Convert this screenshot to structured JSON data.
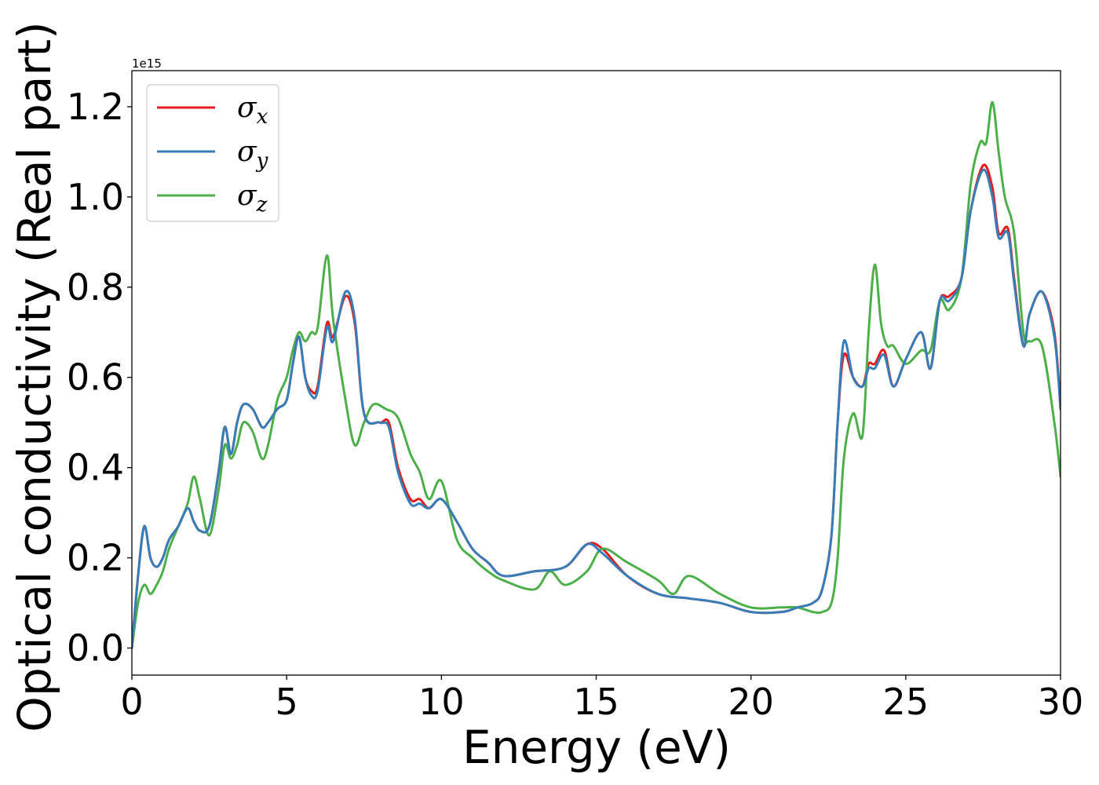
{
  "chart_data": {
    "type": "line",
    "xlabel": "Energy (eV)",
    "ylabel": "Optical conductivity (Real part)",
    "y_offset_text": "1e15",
    "xlim": [
      0,
      30
    ],
    "ylim": [
      -0.06,
      1.28
    ],
    "x_ticks": [
      0,
      5,
      10,
      15,
      20,
      25,
      30
    ],
    "x_tick_labels": [
      "0",
      "5",
      "10",
      "15",
      "20",
      "25",
      "30"
    ],
    "y_ticks": [
      0.0,
      0.2,
      0.4,
      0.6,
      0.8,
      1.0,
      1.2
    ],
    "y_tick_labels": [
      "0.0",
      "0.2",
      "0.4",
      "0.6",
      "0.8",
      "1.0",
      "1.2"
    ],
    "grid": false,
    "legend_position": "top-left",
    "series": [
      {
        "name": "σx",
        "label_main": "σ",
        "label_sub": "x",
        "color": "#e41a1c",
        "x": [
          0,
          0.2,
          0.4,
          0.6,
          0.8,
          1.0,
          1.2,
          1.5,
          1.8,
          2.0,
          2.2,
          2.5,
          2.8,
          3.0,
          3.2,
          3.4,
          3.6,
          3.9,
          4.2,
          4.4,
          4.7,
          5.0,
          5.2,
          5.4,
          5.6,
          5.8,
          6.0,
          6.3,
          6.5,
          6.9,
          7.2,
          7.5,
          8.0,
          8.3,
          8.6,
          9.0,
          9.3,
          9.6,
          10.0,
          10.5,
          11.0,
          11.5,
          12.0,
          13.0,
          14.0,
          14.7,
          15.2,
          16.0,
          17.0,
          18.0,
          19.0,
          20.0,
          21.0,
          21.5,
          22.0,
          22.3,
          22.6,
          22.8,
          23.0,
          23.3,
          23.6,
          23.8,
          24.0,
          24.3,
          24.6,
          25.0,
          25.5,
          25.8,
          26.1,
          26.4,
          26.8,
          27.1,
          27.5,
          27.8,
          28.0,
          28.3,
          28.5,
          28.8,
          29.0,
          29.4,
          29.8,
          30.0
        ],
        "y": [
          0,
          0.16,
          0.27,
          0.2,
          0.18,
          0.2,
          0.24,
          0.27,
          0.31,
          0.28,
          0.26,
          0.27,
          0.39,
          0.49,
          0.43,
          0.5,
          0.54,
          0.53,
          0.49,
          0.5,
          0.53,
          0.55,
          0.63,
          0.69,
          0.6,
          0.57,
          0.58,
          0.72,
          0.69,
          0.78,
          0.72,
          0.52,
          0.5,
          0.5,
          0.4,
          0.33,
          0.33,
          0.31,
          0.33,
          0.28,
          0.22,
          0.19,
          0.16,
          0.17,
          0.18,
          0.23,
          0.22,
          0.16,
          0.12,
          0.11,
          0.1,
          0.08,
          0.08,
          0.09,
          0.1,
          0.13,
          0.25,
          0.5,
          0.65,
          0.6,
          0.58,
          0.63,
          0.63,
          0.66,
          0.58,
          0.64,
          0.7,
          0.62,
          0.77,
          0.78,
          0.82,
          0.97,
          1.07,
          1.02,
          0.92,
          0.93,
          0.82,
          0.67,
          0.74,
          0.79,
          0.7,
          0.53
        ]
      },
      {
        "name": "σy",
        "label_main": "σ",
        "label_sub": "y",
        "color": "#377eb8",
        "x": [
          0,
          0.2,
          0.4,
          0.6,
          0.8,
          1.0,
          1.2,
          1.5,
          1.8,
          2.0,
          2.2,
          2.5,
          2.8,
          3.0,
          3.2,
          3.4,
          3.6,
          3.9,
          4.2,
          4.4,
          4.7,
          5.0,
          5.2,
          5.4,
          5.6,
          5.8,
          6.0,
          6.3,
          6.5,
          6.9,
          7.2,
          7.5,
          8.0,
          8.3,
          8.6,
          9.0,
          9.3,
          9.6,
          10.0,
          10.5,
          11.0,
          11.5,
          12.0,
          13.0,
          14.0,
          14.7,
          15.2,
          16.0,
          17.0,
          18.0,
          19.0,
          20.0,
          21.0,
          21.5,
          22.0,
          22.3,
          22.6,
          22.8,
          23.0,
          23.3,
          23.6,
          23.8,
          24.0,
          24.3,
          24.6,
          25.0,
          25.5,
          25.8,
          26.1,
          26.4,
          26.8,
          27.1,
          27.5,
          27.8,
          28.0,
          28.3,
          28.5,
          28.8,
          29.0,
          29.4,
          29.8,
          30.0
        ],
        "y": [
          0,
          0.16,
          0.27,
          0.2,
          0.18,
          0.2,
          0.24,
          0.27,
          0.31,
          0.28,
          0.26,
          0.27,
          0.39,
          0.49,
          0.43,
          0.5,
          0.54,
          0.53,
          0.49,
          0.5,
          0.53,
          0.55,
          0.63,
          0.69,
          0.6,
          0.56,
          0.57,
          0.71,
          0.68,
          0.79,
          0.73,
          0.52,
          0.5,
          0.49,
          0.39,
          0.32,
          0.32,
          0.31,
          0.33,
          0.28,
          0.22,
          0.19,
          0.16,
          0.17,
          0.18,
          0.23,
          0.21,
          0.16,
          0.12,
          0.11,
          0.1,
          0.08,
          0.08,
          0.09,
          0.1,
          0.13,
          0.25,
          0.5,
          0.68,
          0.6,
          0.58,
          0.62,
          0.62,
          0.65,
          0.58,
          0.64,
          0.7,
          0.62,
          0.77,
          0.77,
          0.82,
          0.97,
          1.06,
          1.0,
          0.91,
          0.92,
          0.81,
          0.67,
          0.74,
          0.79,
          0.69,
          0.53
        ]
      },
      {
        "name": "σz",
        "label_main": "σ",
        "label_sub": "z",
        "color": "#4daf4a",
        "x": [
          0,
          0.2,
          0.4,
          0.6,
          0.8,
          1.0,
          1.2,
          1.5,
          1.8,
          2.0,
          2.2,
          2.5,
          2.8,
          3.0,
          3.2,
          3.4,
          3.6,
          3.9,
          4.2,
          4.4,
          4.7,
          5.0,
          5.2,
          5.4,
          5.6,
          5.8,
          6.0,
          6.3,
          6.5,
          6.9,
          7.2,
          7.5,
          7.8,
          8.2,
          8.6,
          9.0,
          9.3,
          9.6,
          10.0,
          10.5,
          11.0,
          11.5,
          12.0,
          13.0,
          13.5,
          14.0,
          14.7,
          15.2,
          16.0,
          17.0,
          17.5,
          18.0,
          19.0,
          20.0,
          21.0,
          21.5,
          22.0,
          22.3,
          22.6,
          22.8,
          23.0,
          23.3,
          23.6,
          23.8,
          24.0,
          24.2,
          24.4,
          24.6,
          25.0,
          25.5,
          25.8,
          26.1,
          26.4,
          26.8,
          27.1,
          27.4,
          27.6,
          27.8,
          28.0,
          28.2,
          28.5,
          28.8,
          29.0,
          29.4,
          29.8,
          30.0
        ],
        "y": [
          0,
          0.1,
          0.14,
          0.12,
          0.14,
          0.17,
          0.22,
          0.27,
          0.32,
          0.38,
          0.33,
          0.25,
          0.35,
          0.45,
          0.42,
          0.45,
          0.5,
          0.48,
          0.42,
          0.45,
          0.55,
          0.6,
          0.66,
          0.7,
          0.68,
          0.7,
          0.71,
          0.87,
          0.73,
          0.55,
          0.45,
          0.5,
          0.54,
          0.53,
          0.51,
          0.43,
          0.39,
          0.33,
          0.37,
          0.24,
          0.2,
          0.17,
          0.15,
          0.13,
          0.17,
          0.14,
          0.17,
          0.22,
          0.19,
          0.15,
          0.12,
          0.16,
          0.12,
          0.09,
          0.09,
          0.09,
          0.08,
          0.08,
          0.1,
          0.2,
          0.42,
          0.52,
          0.47,
          0.7,
          0.85,
          0.72,
          0.67,
          0.67,
          0.63,
          0.66,
          0.66,
          0.77,
          0.75,
          0.82,
          1.03,
          1.12,
          1.12,
          1.21,
          1.1,
          1.0,
          0.92,
          0.7,
          0.68,
          0.67,
          0.5,
          0.38
        ]
      }
    ]
  }
}
